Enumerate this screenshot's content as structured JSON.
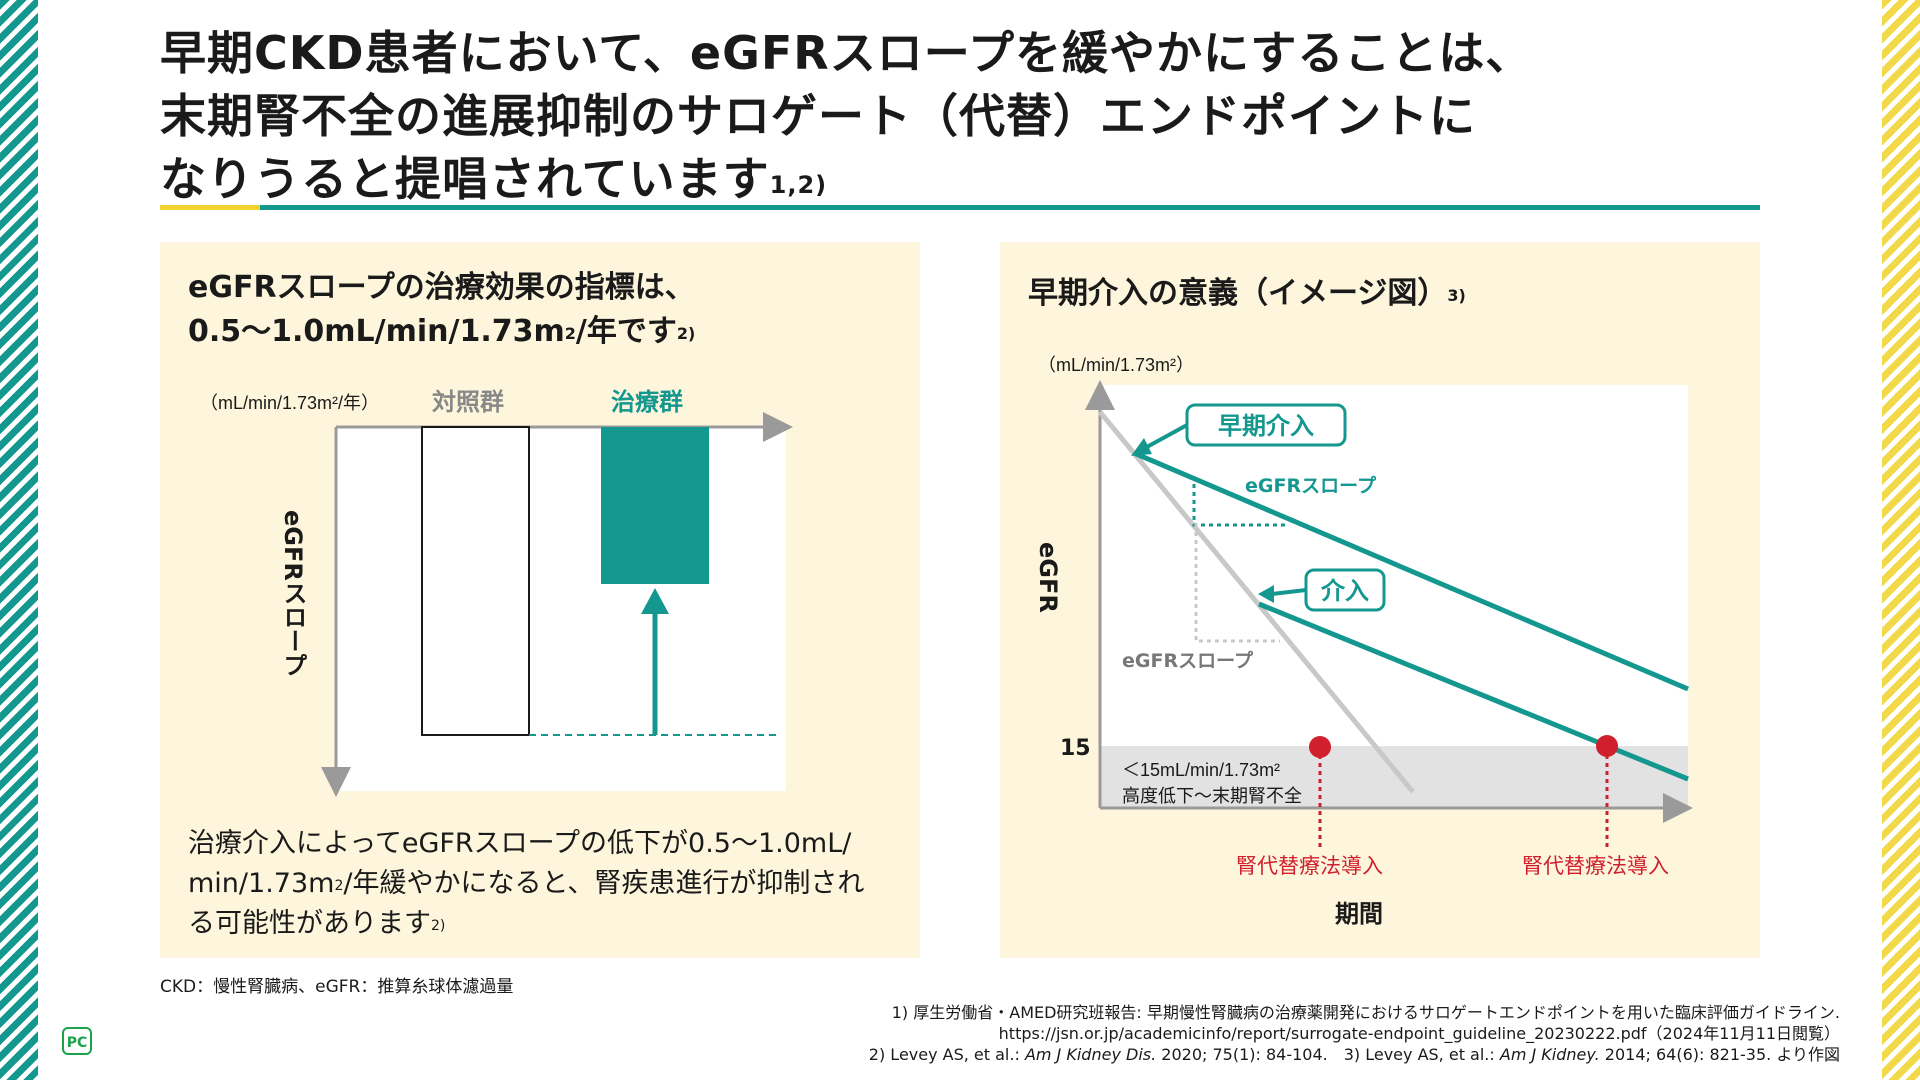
{
  "title": {
    "line1": "早期CKD患者において、eGFRスロープを緩やかにすることは、",
    "line2": "末期腎不全の進展抑制のサロゲート（代替）エンドポイントに",
    "line3": "なりうると提唱されています",
    "ref": "1,2)"
  },
  "left": {
    "heading1": "eGFRスロープの治療効果の指標は、",
    "heading2": "0.5〜1.0mL/min/1.73m",
    "heading2_sup": "2",
    "heading2_after": "/年です",
    "heading_ref": "2)",
    "unit": "（mL/min/1.73m²/年）",
    "control_label": "対照群",
    "treatment_label": "治療群",
    "ylabel": "eGFRスロープ",
    "body1": "治療介入によってeGFRスロープの低下が0.5〜1.0mL/",
    "body2a": "min/1.73m",
    "body2_sup": "2",
    "body2b": "/年緩やかになると、腎疾患進行が抑制され",
    "body3": "る可能性があります",
    "body_ref": "2)"
  },
  "right": {
    "heading": "早期介入の意義（イメージ図）",
    "heading_ref": "3)",
    "unit": "（mL/min/1.73m²）",
    "ylabel": "eGFR",
    "xlabel": "期間",
    "tick15": "15",
    "early_label": "早期介入",
    "late_label": "介入",
    "slope_label_early": "eGFRスロープ",
    "slope_label_natural": "eGFRスロープ",
    "zone_line1": "＜15mL/min/1.73m²",
    "zone_line2": "高度低下〜末期腎不全",
    "rrt_label_1": "腎代替療法導入",
    "rrt_label_2": "腎代替療法導入"
  },
  "footnote": "CKD：慢性腎臓病、eGFR：推算糸球体濾過量",
  "refs": {
    "r1a": "1) 厚生労働省・AMED研究班報告: 早期慢性腎臓病の治療薬開発におけるサロゲートエンドポイントを用いた臨床評価ガイドライン.",
    "r1b": "https://jsn.or.jp/academicinfo/report/surrogate-endpoint_guideline_20230222.pdf（2024年11月11日閲覧）",
    "r2": "2) Levey AS, et al.: ",
    "r2j": "Am J Kidney Dis.",
    "r2b": " 2020; 75(1): 84-104.　3) Levey AS, et al.: ",
    "r3j": "Am J Kidney.",
    "r3b": " 2014; 64(6): 821-35. より作図"
  },
  "logo": "PC",
  "colors": {
    "teal": "#14978f",
    "yellow": "#f2d22e",
    "panel": "#fdf6dc",
    "red": "#d0202e",
    "gray": "#c8c8c8"
  }
}
